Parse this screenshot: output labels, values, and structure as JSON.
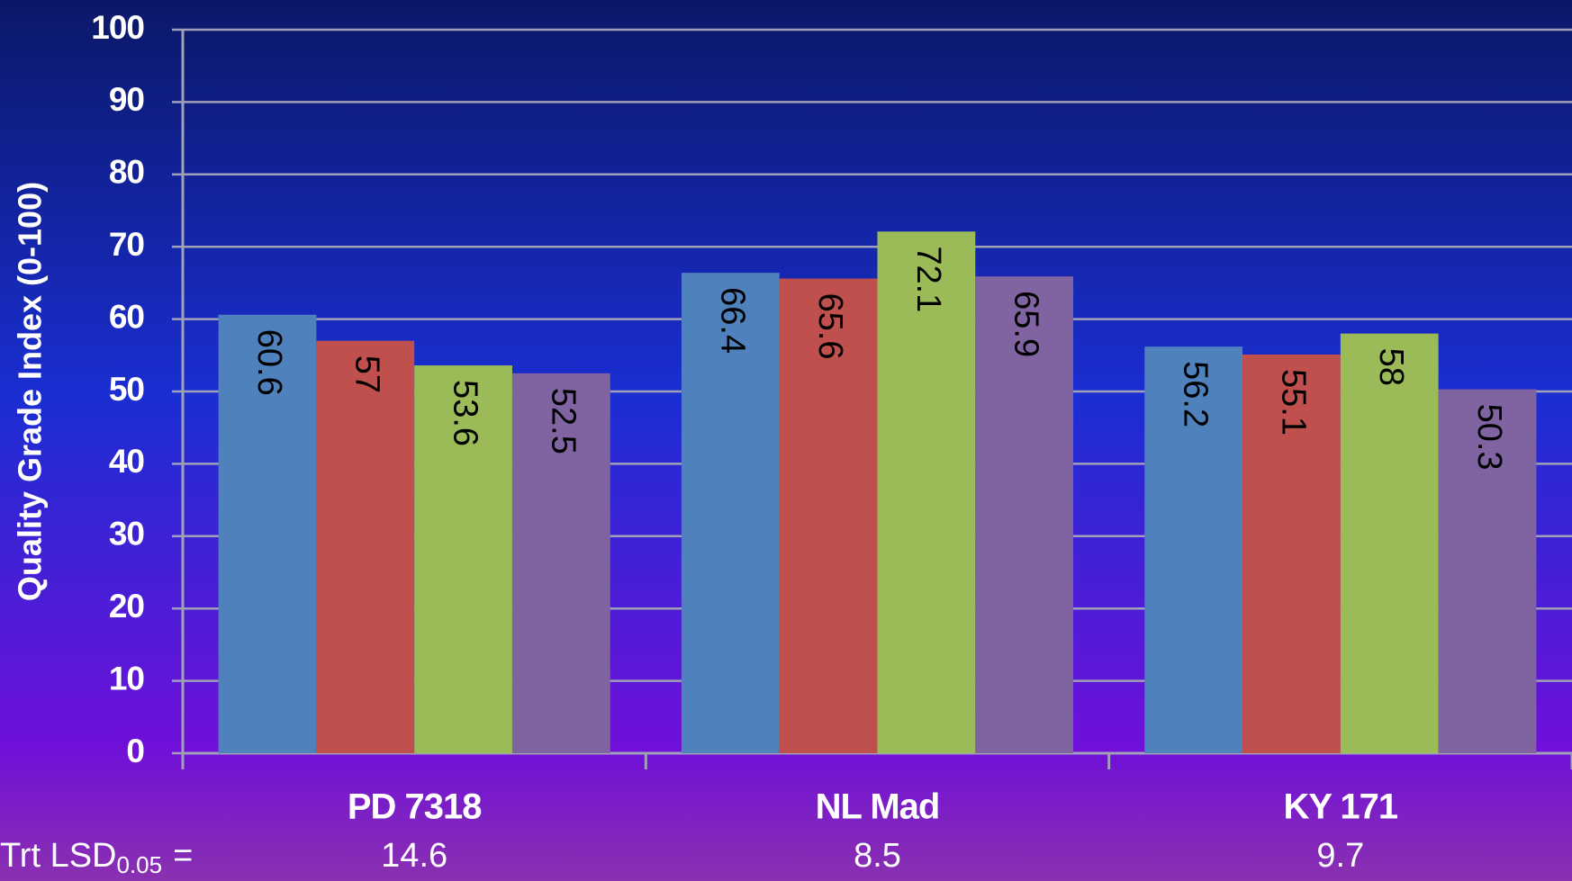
{
  "chart_data": {
    "type": "bar",
    "y_label": "Quality Grade Index (0-100)",
    "categories": [
      "PD 7318",
      "NL Mad",
      "KY 171"
    ],
    "series": [
      {
        "color": "#4f81bd",
        "values": [
          60.6,
          66.4,
          56.2
        ]
      },
      {
        "color": "#c0504d",
        "values": [
          57,
          65.6,
          55.1
        ]
      },
      {
        "color": "#9bbb59",
        "values": [
          53.6,
          72.1,
          58
        ]
      },
      {
        "color": "#8064a2",
        "values": [
          52.5,
          65.9,
          50.3
        ]
      }
    ],
    "ylim": [
      0,
      100
    ],
    "yticks": [
      0,
      10,
      20,
      30,
      40,
      50,
      60,
      70,
      80,
      90,
      100
    ],
    "grid": true,
    "lsd": {
      "label": "Trt LSD",
      "subscript": "0.05",
      "equals": "=",
      "values": [
        14.6,
        8.5,
        9.7
      ]
    }
  }
}
